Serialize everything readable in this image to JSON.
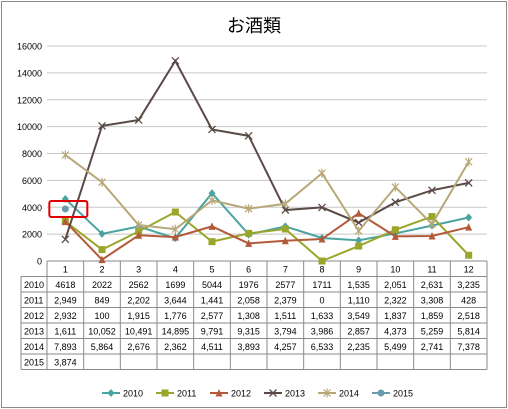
{
  "chart_data": {
    "type": "line",
    "title": "お酒類",
    "categories": [
      "1",
      "2",
      "3",
      "4",
      "5",
      "6",
      "7",
      "8",
      "9",
      "10",
      "11",
      "12"
    ],
    "ylim": [
      0,
      16000
    ],
    "yticks": [
      "0",
      "2000",
      "4000",
      "6000",
      "8000",
      "10000",
      "12000",
      "14000",
      "16000"
    ],
    "grid": true,
    "legend_position": "bottom",
    "series": [
      {
        "name": "2010",
        "color": "#4aa3a3",
        "marker": "diamond",
        "values": [
          4618,
          2022,
          2562,
          1699,
          5044,
          1976,
          2577,
          1711,
          1535,
          2051,
          2631,
          3235
        ],
        "labels": [
          "4618",
          "2022",
          "2562",
          "1699",
          "5044",
          "1976",
          "2577",
          "1711",
          "1,535",
          "2,051",
          "2,631",
          "3,235"
        ]
      },
      {
        "name": "2011",
        "color": "#9aa62a",
        "marker": "square",
        "values": [
          2949,
          849,
          2202,
          3644,
          1441,
          2058,
          2379,
          0,
          1110,
          2322,
          3308,
          428
        ],
        "labels": [
          "2,949",
          "849",
          "2,202",
          "3,644",
          "1,441",
          "2,058",
          "2,379",
          "0",
          "1,110",
          "2,322",
          "3,308",
          "428"
        ]
      },
      {
        "name": "2012",
        "color": "#b35a3a",
        "marker": "triangle",
        "values": [
          2932,
          100,
          1915,
          1776,
          2577,
          1308,
          1511,
          1633,
          3549,
          1837,
          1859,
          2518
        ],
        "labels": [
          "2,932",
          "100",
          "1,915",
          "1,776",
          "2,577",
          "1,308",
          "1,511",
          "1,633",
          "3,549",
          "1,837",
          "1,859",
          "2,518"
        ]
      },
      {
        "name": "2013",
        "color": "#5a4a46",
        "marker": "x",
        "values": [
          1611,
          10052,
          10491,
          14895,
          9791,
          9315,
          3794,
          3986,
          2857,
          4373,
          5259,
          5814
        ],
        "labels": [
          "1,611",
          "10,052",
          "10,491",
          "14,895",
          "9,791",
          "9,315",
          "3,794",
          "3,986",
          "2,857",
          "4,373",
          "5,259",
          "5,814"
        ]
      },
      {
        "name": "2014",
        "color": "#b8a878",
        "marker": "star",
        "values": [
          7893,
          5864,
          2676,
          2362,
          4511,
          3893,
          4257,
          6533,
          2235,
          5499,
          2741,
          7378
        ],
        "labels": [
          "7,893",
          "5,864",
          "2,676",
          "2,362",
          "4,511",
          "3,893",
          "4,257",
          "6,533",
          "2,235",
          "5,499",
          "2,741",
          "7,378"
        ]
      },
      {
        "name": "2015",
        "color": "#6a9aab",
        "marker": "circle",
        "values": [
          3874,
          null,
          null,
          null,
          null,
          null,
          null,
          null,
          null,
          null,
          null,
          null
        ],
        "labels": [
          "3,874",
          "",
          "",
          "",
          "",
          "",
          "",
          "",
          "",
          "",
          "",
          ""
        ]
      }
    ],
    "highlight": {
      "series": "2015",
      "category": "1",
      "color": "#e00000"
    }
  }
}
